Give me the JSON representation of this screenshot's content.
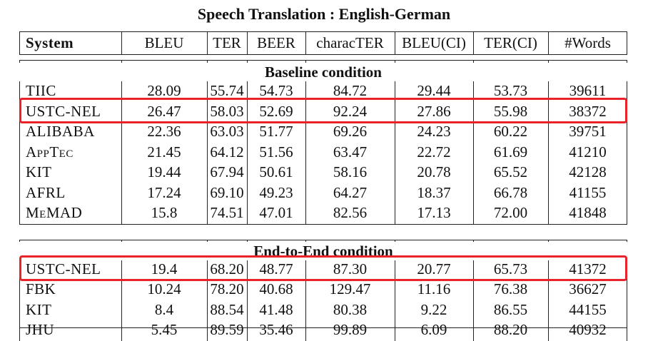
{
  "title": "Speech Translation : English-German",
  "headers": [
    "System",
    "BLEU",
    "TER",
    "BEER",
    "characTER",
    "BLEU(CI)",
    "TER(CI)",
    "#Words"
  ],
  "baseline": {
    "label": "Baseline condition",
    "rows": [
      [
        "TIIC",
        "28.09",
        "55.74",
        "54.73",
        "84.72",
        "29.44",
        "53.73",
        "39611"
      ],
      [
        "USTC-NEL",
        "26.47",
        "58.03",
        "52.69",
        "92.24",
        "27.86",
        "55.98",
        "38372"
      ],
      [
        "ALIBABA",
        "22.36",
        "63.03",
        "51.77",
        "69.26",
        "24.23",
        "60.22",
        "39751"
      ],
      [
        "AppTec",
        "21.45",
        "64.12",
        "51.56",
        "63.47",
        "22.72",
        "61.69",
        "41210"
      ],
      [
        "KIT",
        "19.44",
        "67.94",
        "50.61",
        "58.16",
        "20.78",
        "65.52",
        "42128"
      ],
      [
        "AFRL",
        "17.24",
        "69.10",
        "49.23",
        "64.27",
        "18.37",
        "66.78",
        "41155"
      ],
      [
        "MeMAD",
        "15.8",
        "74.51",
        "47.01",
        "82.56",
        "17.13",
        "72.00",
        "41848"
      ]
    ]
  },
  "end_to_end": {
    "label": "End-to-End condition",
    "rows": [
      [
        "USTC-NEL",
        "19.4",
        "68.20",
        "48.77",
        "87.30",
        "20.77",
        "65.73",
        "41372"
      ],
      [
        "FBK",
        "10.24",
        "78.20",
        "40.68",
        "129.47",
        "11.16",
        "76.38",
        "36627"
      ],
      [
        "KIT",
        "8.4",
        "88.54",
        "41.48",
        "80.38",
        "9.22",
        "86.55",
        "44155"
      ],
      [
        "JHU",
        "5.45",
        "89.59",
        "35.46",
        "99.89",
        "6.09",
        "88.20",
        "40932"
      ]
    ]
  },
  "highlight_color": "#e8232a",
  "highlighted_systems": [
    "USTC-NEL"
  ]
}
